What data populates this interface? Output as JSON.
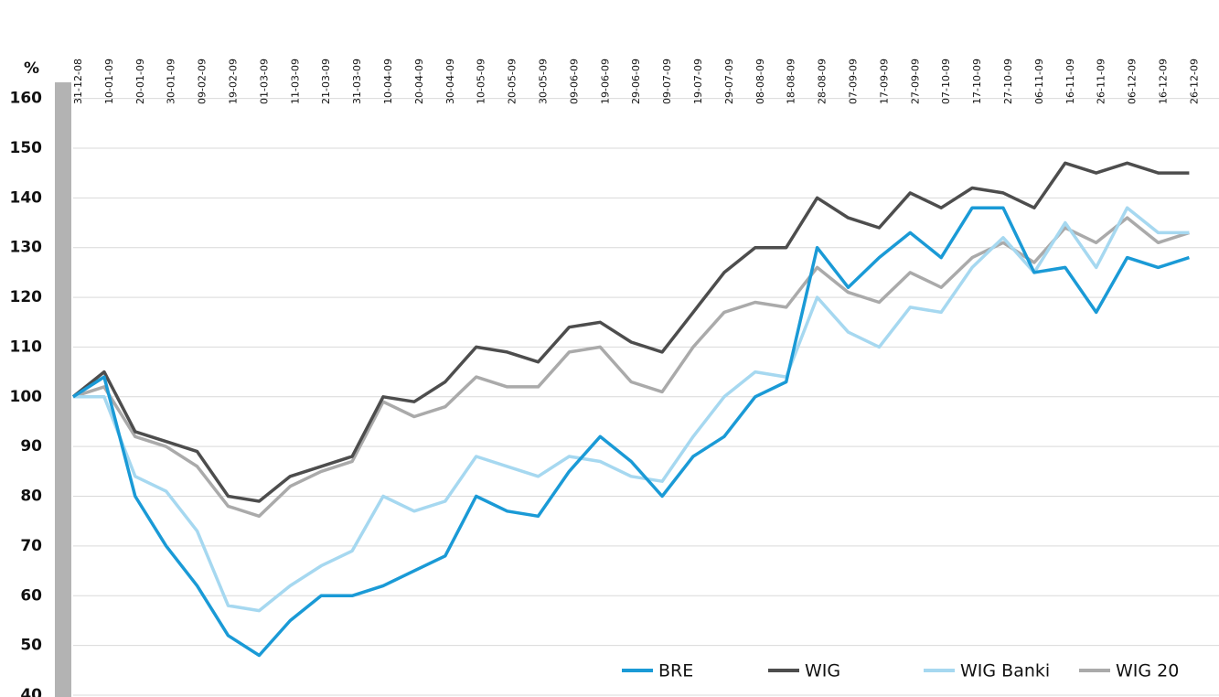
{
  "chart_data": {
    "type": "line",
    "y_label": "%",
    "categories": [
      "31-12-08",
      "10-01-09",
      "20-01-09",
      "30-01-09",
      "09-02-09",
      "19-02-09",
      "01-03-09",
      "11-03-09",
      "21-03-09",
      "31-03-09",
      "10-04-09",
      "20-04-09",
      "30-04-09",
      "10-05-09",
      "20-05-09",
      "30-05-09",
      "09-06-09",
      "19-06-09",
      "29-06-09",
      "09-07-09",
      "19-07-09",
      "29-07-09",
      "08-08-09",
      "18-08-09",
      "28-08-09",
      "07-09-09",
      "17-09-09",
      "27-09-09",
      "07-10-09",
      "17-10-09",
      "27-10-09",
      "06-11-09",
      "16-11-09",
      "26-11-09",
      "06-12-09",
      "16-12-09",
      "26-12-09"
    ],
    "series": [
      {
        "name": "BRE",
        "color": "#1a9ad6",
        "values": [
          100,
          104,
          80,
          70,
          62,
          52,
          48,
          55,
          60,
          60,
          62,
          65,
          68,
          80,
          77,
          76,
          85,
          92,
          87,
          80,
          88,
          92,
          100,
          103,
          130,
          122,
          128,
          133,
          128,
          138,
          138,
          125,
          126,
          117,
          128,
          126,
          128
        ]
      },
      {
        "name": "WIG",
        "color": "#4d4d4d",
        "values": [
          100,
          105,
          93,
          91,
          89,
          80,
          79,
          84,
          86,
          88,
          100,
          99,
          103,
          110,
          109,
          107,
          114,
          115,
          111,
          109,
          117,
          125,
          130,
          130,
          140,
          136,
          134,
          141,
          138,
          142,
          141,
          138,
          147,
          145,
          147,
          145,
          145
        ]
      },
      {
        "name": "WIG Banki",
        "color": "#a6d8f0",
        "values": [
          100,
          100,
          84,
          81,
          73,
          58,
          57,
          62,
          66,
          69,
          80,
          77,
          79,
          88,
          86,
          84,
          88,
          87,
          84,
          83,
          92,
          100,
          105,
          104,
          120,
          113,
          110,
          118,
          117,
          126,
          132,
          125,
          135,
          126,
          138,
          133,
          133
        ]
      },
      {
        "name": "WIG 20",
        "color": "#aaaaaa",
        "values": [
          100,
          102,
          92,
          90,
          86,
          78,
          76,
          82,
          85,
          87,
          99,
          96,
          98,
          104,
          102,
          102,
          109,
          110,
          103,
          101,
          110,
          117,
          119,
          118,
          126,
          121,
          119,
          125,
          122,
          128,
          131,
          127,
          134,
          131,
          136,
          131,
          133
        ]
      }
    ],
    "ylim": [
      40,
      160
    ],
    "yticks": [
      40,
      50,
      60,
      70,
      80,
      90,
      100,
      110,
      120,
      130,
      140,
      150,
      160
    ],
    "grid": true
  }
}
